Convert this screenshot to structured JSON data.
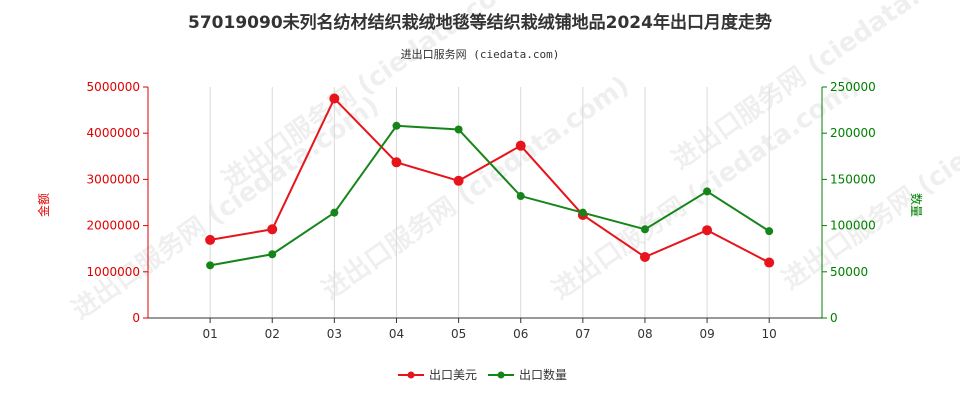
{
  "chart_data": {
    "type": "line",
    "title": "57019090未列名纺材结织栽绒地毯等结织栽绒铺地品2024年出口月度走势",
    "subtitle": "进出口服务网 (ciedata.com)",
    "watermark": "进出口服务网 (ciedata.com)",
    "categories": [
      "01",
      "02",
      "03",
      "04",
      "05",
      "06",
      "07",
      "08",
      "09",
      "10"
    ],
    "ylabel_left": "金额",
    "ylabel_right": "数量",
    "ylim_left": [
      0,
      5000000
    ],
    "ylim_right": [
      0,
      250000
    ],
    "yticks_left": [
      0,
      1000000,
      2000000,
      3000000,
      4000000,
      5000000
    ],
    "yticks_right": [
      0,
      50000,
      100000,
      150000,
      200000,
      250000
    ],
    "grid": "vertical",
    "legend_position": "bottom",
    "series": [
      {
        "name": "出口美元",
        "axis": "left",
        "color": "#e8141b",
        "values": [
          1690000,
          1920000,
          4750000,
          3370000,
          2970000,
          3730000,
          2230000,
          1320000,
          1900000,
          1200000
        ]
      },
      {
        "name": "出口数量",
        "axis": "right",
        "color": "#15851a",
        "values": [
          57000,
          69000,
          114000,
          208000,
          204000,
          132000,
          114000,
          96000,
          137000,
          94000
        ]
      }
    ]
  }
}
